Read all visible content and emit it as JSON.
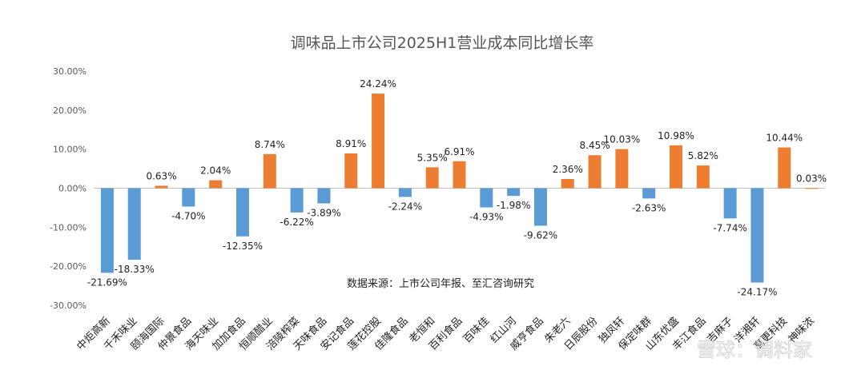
{
  "chart_data": {
    "type": "bar",
    "title": "调味品上市公司2025H1营业成本同比增长率",
    "source": "数据来源：上市公司年报、至汇咨询研究",
    "watermark": "雪球：调料家",
    "ylim": [
      -30,
      30
    ],
    "y_ticks": [
      "30.00%",
      "20.00%",
      "10.00%",
      "0.00%",
      "-10.00%",
      "-20.00%",
      "-30.00%"
    ],
    "colors": {
      "positive": "#ED7D31",
      "negative": "#5B9BD5"
    },
    "categories": [
      "中炬高新",
      "千禾味业",
      "颐海国际",
      "仲景食品",
      "海天味业",
      "加加食品",
      "恒顺醋业",
      "涪陵榨菜",
      "天味食品",
      "安记食品",
      "莲花控股",
      "佳隆食品",
      "老恒和",
      "百利食品",
      "百味佳",
      "红山河",
      "威亨食品",
      "朱老六",
      "日辰股份",
      "独凤轩",
      "保定味群",
      "山东优盛",
      "丰江食品",
      "吉麻子",
      "洋湘轩",
      "高更科技",
      "神味浓"
    ],
    "values": [
      -21.69,
      -18.33,
      0.63,
      -4.7,
      2.04,
      -12.35,
      8.74,
      -6.22,
      -3.89,
      8.91,
      24.24,
      -2.24,
      5.35,
      6.91,
      -4.93,
      -1.98,
      -9.62,
      2.36,
      8.45,
      10.03,
      -2.63,
      10.98,
      5.82,
      -7.74,
      -24.17,
      10.44,
      0.03
    ],
    "labels": [
      "-21.69%",
      "-18.33%",
      "0.63%",
      "-4.70%",
      "2.04%",
      "-12.35%",
      "8.74%",
      "-6.22%",
      "-3.89%",
      "8.91%",
      "24.24%",
      "-2.24%",
      "5.35%",
      "6.91%",
      "-4.93%",
      "-1.98%",
      "-9.62%",
      "2.36%",
      "8.45%",
      "10.03%",
      "-2.63%",
      "10.98%",
      "5.82%",
      "-7.74%",
      "-24.17%",
      "10.44%",
      "0.03%"
    ]
  }
}
